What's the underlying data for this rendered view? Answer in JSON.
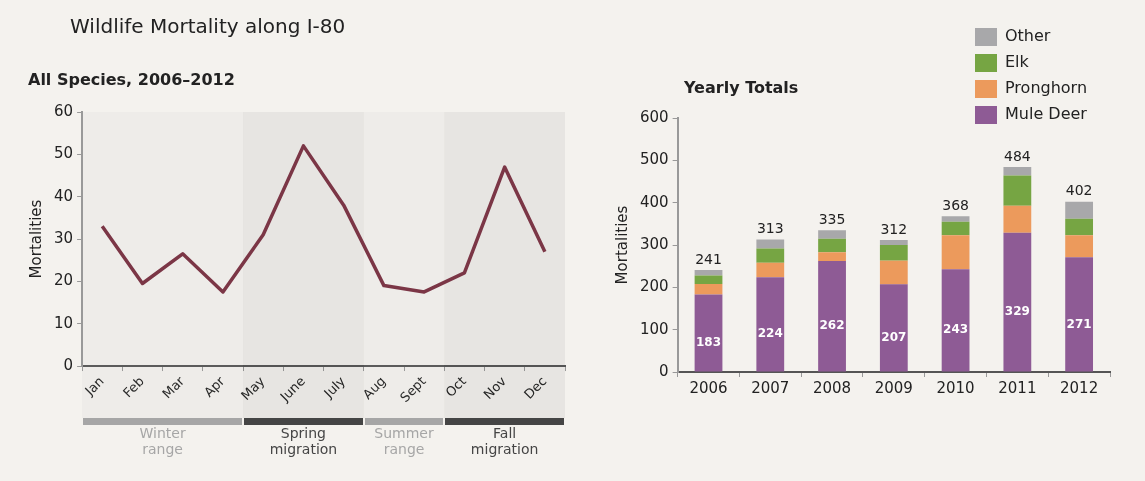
{
  "chart_data": [
    {
      "type": "line",
      "title": "Wildlife Mortality along I-80",
      "subtitle": "All Species, 2006–2012",
      "ylabel": "Mortalities",
      "categories": [
        "Jan",
        "Feb",
        "Mar",
        "Apr",
        "May",
        "June",
        "July",
        "Aug",
        "Sept",
        "Oct",
        "Nov",
        "Dec"
      ],
      "series": [
        {
          "color": "#7b3646",
          "values": [
            33,
            19.5,
            26.5,
            17.5,
            31,
            52,
            38,
            19,
            17.5,
            22,
            47,
            27
          ]
        }
      ],
      "ylim": [
        0,
        60
      ],
      "yticks": [
        0,
        10,
        20,
        30,
        40,
        50,
        60
      ],
      "grid": false,
      "legend": false,
      "marker": "none",
      "line_style": "solid",
      "bands": [
        {
          "axis": "x",
          "from": "Jan",
          "to": "Apr",
          "label": "Winter range",
          "color": "#a6a6a6"
        },
        {
          "axis": "x",
          "from": "May",
          "to": "July",
          "label": "Spring migration",
          "color": "#454545"
        },
        {
          "axis": "x",
          "from": "Aug",
          "to": "Sept",
          "label": "Summer range",
          "color": "#a6a6a6"
        },
        {
          "axis": "x",
          "from": "Oct",
          "to": "Dec",
          "label": "Fall migration",
          "color": "#454545"
        }
      ]
    },
    {
      "type": "bar",
      "stacked": true,
      "title": "Yearly Totals",
      "ylabel": "Mortalities",
      "categories": [
        "2006",
        "2007",
        "2008",
        "2009",
        "2010",
        "2011",
        "2012"
      ],
      "series": [
        {
          "name": "Mule Deer",
          "color": "#8e5b95",
          "values": [
            183,
            224,
            262,
            207,
            243,
            329,
            271
          ],
          "value_labels": [
            "183",
            "224",
            "262",
            "207",
            "243",
            "329",
            "271"
          ]
        },
        {
          "name": "Pronghorn",
          "color": "#ec9a5c",
          "values": [
            25,
            34,
            21,
            56,
            80,
            64,
            52
          ]
        },
        {
          "name": "Elk",
          "color": "#76a543",
          "values": [
            20,
            34,
            32,
            37,
            32,
            71,
            39
          ]
        },
        {
          "name": "Other",
          "color": "#a8a8aa",
          "values": [
            13,
            21,
            20,
            12,
            13,
            20,
            40
          ]
        }
      ],
      "totals": [
        "241",
        "313",
        "335",
        "312",
        "368",
        "484",
        "402"
      ],
      "ylim": [
        0,
        600
      ],
      "yticks": [
        0,
        100,
        200,
        300,
        400,
        500,
        600
      ],
      "grid": false,
      "legend": "top right"
    }
  ]
}
